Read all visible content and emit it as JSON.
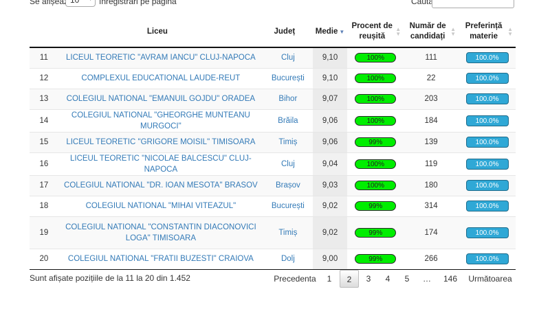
{
  "controls": {
    "length_prefix": "Se afișează",
    "length_value": "10",
    "length_suffix": "înregistrări pe pagină",
    "search_label": "Caută:",
    "search_value": ""
  },
  "columns": {
    "school": "Liceu",
    "county": "Județ",
    "avg": "Medie",
    "success_line1": "Procent de",
    "success_line2": "reușită",
    "candidates_line1": "Număr de",
    "candidates_line2": "candidați",
    "pref_line1": "Preferință",
    "pref_line2": "materie"
  },
  "colors": {
    "success_pill": "#00ee00",
    "preference_pill": "#2fa8d6",
    "link": "#337ab7"
  },
  "rows": [
    {
      "rank": "11",
      "school": "LICEUL TEORETIC \"AVRAM IANCU\" CLUJ-NAPOCA",
      "county": "Cluj",
      "avg": "9,10",
      "success": "100%",
      "candidates": "111",
      "preference": "100.0%"
    },
    {
      "rank": "12",
      "school": "COMPLEXUL EDUCATIONAL LAUDE-REUT",
      "county": "București",
      "avg": "9,10",
      "success": "100%",
      "candidates": "22",
      "preference": "100.0%"
    },
    {
      "rank": "13",
      "school": "COLEGIUL NATIONAL \"EMANUIL GOJDU\" ORADEA",
      "county": "Bihor",
      "avg": "9,07",
      "success": "100%",
      "candidates": "203",
      "preference": "100.0%"
    },
    {
      "rank": "14",
      "school": "COLEGIUL NATIONAL \"GHEORGHE MUNTEANU MURGOCI\"",
      "county": "Brăila",
      "avg": "9,06",
      "success": "100%",
      "candidates": "184",
      "preference": "100.0%"
    },
    {
      "rank": "15",
      "school": "LICEUL TEORETIC \"GRIGORE MOISIL\" TIMISOARA",
      "county": "Timiș",
      "avg": "9,06",
      "success": "99%",
      "candidates": "139",
      "preference": "100.0%"
    },
    {
      "rank": "16",
      "school": "LICEUL TEORETIC \"NICOLAE BALCESCU\" CLUJ-NAPOCA",
      "county": "Cluj",
      "avg": "9,04",
      "success": "100%",
      "candidates": "119",
      "preference": "100.0%"
    },
    {
      "rank": "17",
      "school": "COLEGIUL NATIONAL \"DR. IOAN MESOTA\" BRASOV",
      "county": "Brașov",
      "avg": "9,03",
      "success": "100%",
      "candidates": "180",
      "preference": "100.0%"
    },
    {
      "rank": "18",
      "school": "COLEGIUL NATIONAL \"MIHAI VITEAZUL\"",
      "county": "București",
      "avg": "9,02",
      "success": "99%",
      "candidates": "314",
      "preference": "100.0%"
    },
    {
      "rank": "19",
      "school": "COLEGIUL NATIONAL \"CONSTANTIN DIACONOVICI LOGA\" TIMISOARA",
      "county": "Timiș",
      "avg": "9,02",
      "success": "99%",
      "candidates": "174",
      "preference": "100.0%"
    },
    {
      "rank": "20",
      "school": "COLEGIUL NATIONAL \"FRATII BUZESTI\" CRAIOVA",
      "county": "Dolj",
      "avg": "9,00",
      "success": "99%",
      "candidates": "266",
      "preference": "100.0%"
    }
  ],
  "info": "Sunt afișate pozițiile de la 11 la 20 din 1.452",
  "pagination": {
    "previous": "Precedenta",
    "pages": [
      "1",
      "2",
      "3",
      "4",
      "5",
      "…",
      "146"
    ],
    "current": "2",
    "next": "Următoarea"
  }
}
